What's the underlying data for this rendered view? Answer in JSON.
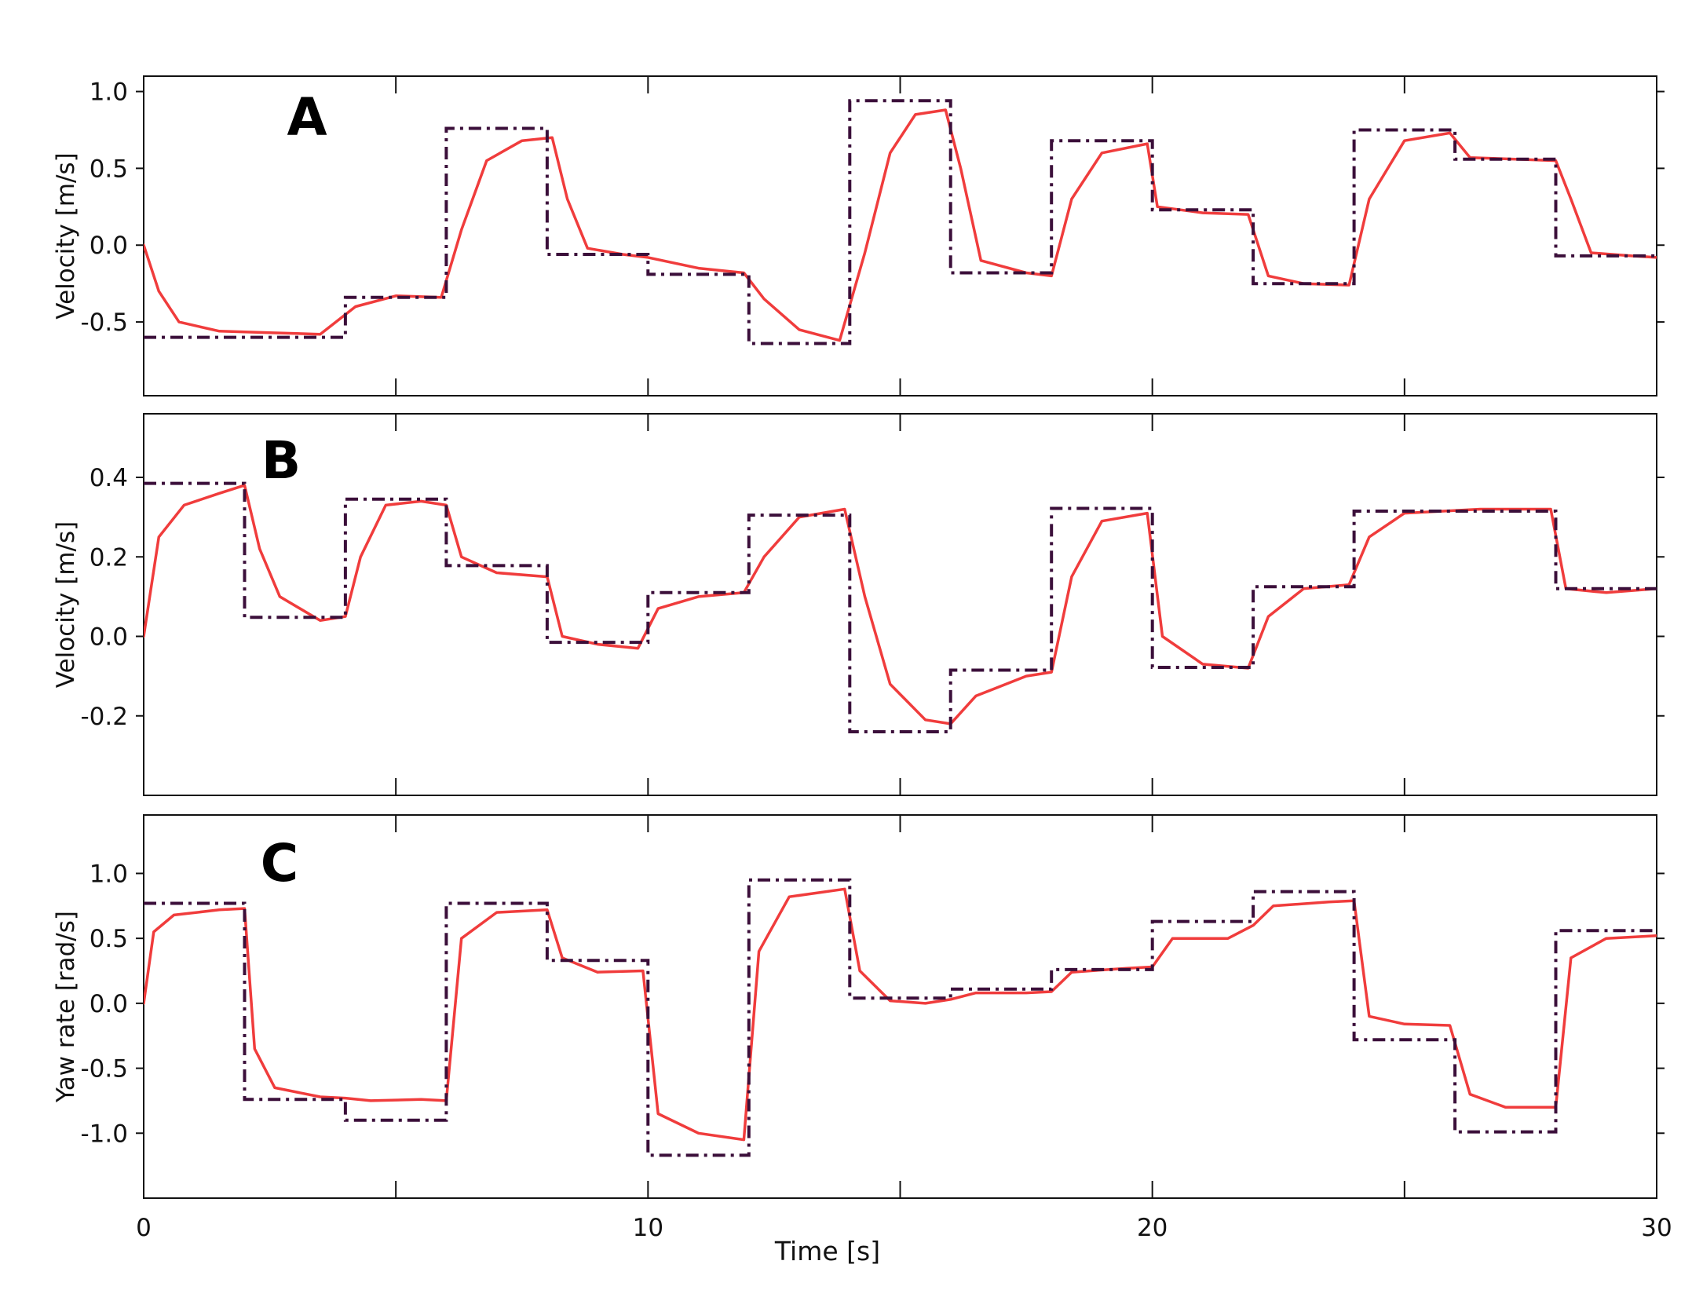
{
  "figure": {
    "xlabel": "Time [s]"
  },
  "colors": {
    "command": "#3b0f3a",
    "measured": "#f03c3c",
    "axes": "#111111"
  },
  "chart_data": [
    {
      "type": "line",
      "panel_label": "A",
      "ylabel": "Velocity [m/s]",
      "xlim": [
        0,
        30
      ],
      "ylim": [
        -0.98,
        1.1
      ],
      "yticks": [
        1.0,
        0.5,
        0.0,
        -0.5
      ],
      "ytick_labels": [
        "1.0",
        "0.5",
        "0.0",
        "-0.5"
      ],
      "xticks": [
        0,
        5,
        10,
        15,
        20,
        25,
        30
      ],
      "show_xtick_labels": false,
      "series": [
        {
          "role": "command",
          "style": "dashed",
          "steps": [
            {
              "x0": 0,
              "x1": 4,
              "y": -0.6
            },
            {
              "x0": 4,
              "x1": 6,
              "y": -0.34
            },
            {
              "x0": 6,
              "x1": 8,
              "y": 0.76
            },
            {
              "x0": 8,
              "x1": 10,
              "y": -0.06
            },
            {
              "x0": 10,
              "x1": 12,
              "y": -0.19
            },
            {
              "x0": 12,
              "x1": 14,
              "y": -0.64
            },
            {
              "x0": 14,
              "x1": 16,
              "y": 0.94
            },
            {
              "x0": 16,
              "x1": 18,
              "y": -0.18
            },
            {
              "x0": 18,
              "x1": 20,
              "y": 0.68
            },
            {
              "x0": 20,
              "x1": 22,
              "y": 0.23
            },
            {
              "x0": 22,
              "x1": 24,
              "y": -0.25
            },
            {
              "x0": 24,
              "x1": 26,
              "y": 0.75
            },
            {
              "x0": 26,
              "x1": 28,
              "y": 0.56
            },
            {
              "x0": 28,
              "x1": 30,
              "y": -0.07
            }
          ]
        },
        {
          "role": "measured",
          "style": "solid",
          "x": [
            0,
            0.3,
            0.7,
            1.5,
            2.5,
            3.5,
            4.2,
            5.0,
            5.9,
            6.3,
            6.8,
            7.5,
            8.1,
            8.4,
            8.8,
            9.5,
            10.0,
            11.0,
            11.9,
            12.3,
            13.0,
            13.8,
            14.3,
            14.8,
            15.3,
            15.9,
            16.2,
            16.6,
            17.5,
            18.0,
            18.4,
            19.0,
            19.9,
            20.1,
            21.0,
            21.9,
            22.3,
            23.0,
            23.9,
            24.3,
            25.0,
            25.9,
            26.3,
            27.2,
            28.0,
            28.3,
            28.7,
            29.5,
            30.0
          ],
          "y": [
            0.0,
            -0.3,
            -0.5,
            -0.56,
            -0.57,
            -0.58,
            -0.4,
            -0.33,
            -0.34,
            0.1,
            0.55,
            0.68,
            0.7,
            0.3,
            -0.02,
            -0.06,
            -0.08,
            -0.15,
            -0.18,
            -0.35,
            -0.55,
            -0.62,
            -0.05,
            0.6,
            0.85,
            0.88,
            0.5,
            -0.1,
            -0.18,
            -0.2,
            0.3,
            0.6,
            0.66,
            0.25,
            0.21,
            0.2,
            -0.2,
            -0.25,
            -0.26,
            0.3,
            0.68,
            0.73,
            0.57,
            0.56,
            0.55,
            0.3,
            -0.05,
            -0.07,
            -0.08
          ]
        }
      ]
    },
    {
      "type": "line",
      "panel_label": "B",
      "ylabel": "Velocity [m/s]",
      "xlim": [
        0,
        30
      ],
      "ylim": [
        -0.4,
        0.56
      ],
      "yticks": [
        0.4,
        0.2,
        0.0,
        -0.2
      ],
      "ytick_labels": [
        "0.4",
        "0.2",
        "0.0",
        "-0.2"
      ],
      "xticks": [
        0,
        5,
        10,
        15,
        20,
        25,
        30
      ],
      "show_xtick_labels": false,
      "series": [
        {
          "role": "command",
          "style": "dashed",
          "steps": [
            {
              "x0": 0,
              "x1": 2,
              "y": 0.385
            },
            {
              "x0": 2,
              "x1": 4,
              "y": 0.048
            },
            {
              "x0": 4,
              "x1": 6,
              "y": 0.345
            },
            {
              "x0": 6,
              "x1": 8,
              "y": 0.178
            },
            {
              "x0": 8,
              "x1": 10,
              "y": -0.015
            },
            {
              "x0": 10,
              "x1": 12,
              "y": 0.11
            },
            {
              "x0": 12,
              "x1": 14,
              "y": 0.305
            },
            {
              "x0": 14,
              "x1": 16,
              "y": -0.24
            },
            {
              "x0": 16,
              "x1": 18,
              "y": -0.085
            },
            {
              "x0": 18,
              "x1": 20,
              "y": 0.322
            },
            {
              "x0": 20,
              "x1": 22,
              "y": -0.078
            },
            {
              "x0": 22,
              "x1": 24,
              "y": 0.125
            },
            {
              "x0": 24,
              "x1": 28,
              "y": 0.315
            },
            {
              "x0": 28,
              "x1": 30,
              "y": 0.12
            }
          ]
        },
        {
          "role": "measured",
          "style": "solid",
          "x": [
            0,
            0.3,
            0.8,
            1.5,
            2.0,
            2.3,
            2.7,
            3.5,
            4.0,
            4.3,
            4.8,
            5.5,
            6.0,
            6.3,
            7.0,
            8.0,
            8.3,
            9.0,
            9.8,
            10.2,
            11.0,
            11.9,
            12.3,
            13.0,
            13.9,
            14.3,
            14.8,
            15.5,
            16.0,
            16.5,
            17.5,
            18.0,
            18.4,
            19.0,
            19.9,
            20.2,
            21.0,
            21.9,
            22.3,
            23.0,
            23.9,
            24.3,
            25.0,
            26.5,
            27.9,
            28.2,
            29.0,
            30.0
          ],
          "y": [
            0.0,
            0.25,
            0.33,
            0.36,
            0.38,
            0.22,
            0.1,
            0.04,
            0.05,
            0.2,
            0.33,
            0.34,
            0.33,
            0.2,
            0.16,
            0.15,
            0.0,
            -0.02,
            -0.03,
            0.07,
            0.1,
            0.11,
            0.2,
            0.3,
            0.32,
            0.1,
            -0.12,
            -0.21,
            -0.22,
            -0.15,
            -0.1,
            -0.09,
            0.15,
            0.29,
            0.31,
            0.0,
            -0.07,
            -0.08,
            0.05,
            0.12,
            0.13,
            0.25,
            0.31,
            0.32,
            0.32,
            0.12,
            0.11,
            0.12
          ]
        }
      ]
    },
    {
      "type": "line",
      "panel_label": "C",
      "ylabel": "Yaw rate [rad/s]",
      "xlim": [
        0,
        30
      ],
      "ylim": [
        -1.5,
        1.45
      ],
      "yticks": [
        1.0,
        0.5,
        0.0,
        -0.5,
        -1.0
      ],
      "ytick_labels": [
        "1.0",
        "0.5",
        "0.0",
        "-0.5",
        "-1.0"
      ],
      "xticks": [
        0,
        5,
        10,
        15,
        20,
        25,
        30
      ],
      "xtick_labels": [
        "0",
        "",
        "10",
        "",
        "20",
        "",
        "30"
      ],
      "show_xtick_labels": true,
      "series": [
        {
          "role": "command",
          "style": "dashed",
          "steps": [
            {
              "x0": 0,
              "x1": 2,
              "y": 0.77
            },
            {
              "x0": 2,
              "x1": 4,
              "y": -0.74
            },
            {
              "x0": 4,
              "x1": 6,
              "y": -0.9
            },
            {
              "x0": 6,
              "x1": 8,
              "y": 0.77
            },
            {
              "x0": 8,
              "x1": 10,
              "y": 0.33
            },
            {
              "x0": 10,
              "x1": 12,
              "y": -1.17
            },
            {
              "x0": 12,
              "x1": 14,
              "y": 0.95
            },
            {
              "x0": 14,
              "x1": 16,
              "y": 0.04
            },
            {
              "x0": 16,
              "x1": 18,
              "y": 0.11
            },
            {
              "x0": 18,
              "x1": 20,
              "y": 0.26
            },
            {
              "x0": 20,
              "x1": 22,
              "y": 0.63
            },
            {
              "x0": 22,
              "x1": 24,
              "y": 0.86
            },
            {
              "x0": 24,
              "x1": 26,
              "y": -0.28
            },
            {
              "x0": 26,
              "x1": 28,
              "y": -0.99
            },
            {
              "x0": 28,
              "x1": 30,
              "y": 0.56
            }
          ]
        },
        {
          "role": "measured",
          "style": "solid",
          "x": [
            0,
            0.2,
            0.6,
            1.5,
            2.0,
            2.2,
            2.6,
            3.5,
            4.0,
            4.5,
            5.5,
            6.0,
            6.3,
            7.0,
            8.0,
            8.3,
            9.0,
            9.9,
            10.2,
            11.0,
            11.9,
            12.2,
            12.8,
            13.9,
            14.2,
            14.8,
            15.5,
            16.0,
            16.5,
            17.5,
            18.0,
            18.4,
            19.5,
            20.0,
            20.4,
            21.5,
            22.0,
            22.4,
            23.5,
            24.0,
            24.3,
            25.0,
            25.9,
            26.3,
            27.0,
            28.0,
            28.3,
            29.0,
            30.0
          ],
          "y": [
            0.0,
            0.55,
            0.68,
            0.72,
            0.73,
            -0.35,
            -0.65,
            -0.72,
            -0.73,
            -0.75,
            -0.74,
            -0.75,
            0.5,
            0.7,
            0.72,
            0.35,
            0.24,
            0.25,
            -0.85,
            -1.0,
            -1.05,
            0.4,
            0.82,
            0.88,
            0.25,
            0.02,
            0.0,
            0.03,
            0.08,
            0.08,
            0.09,
            0.24,
            0.27,
            0.28,
            0.5,
            0.5,
            0.6,
            0.75,
            0.78,
            0.79,
            -0.1,
            -0.16,
            -0.17,
            -0.7,
            -0.8,
            -0.8,
            0.35,
            0.5,
            0.52
          ]
        }
      ]
    }
  ]
}
